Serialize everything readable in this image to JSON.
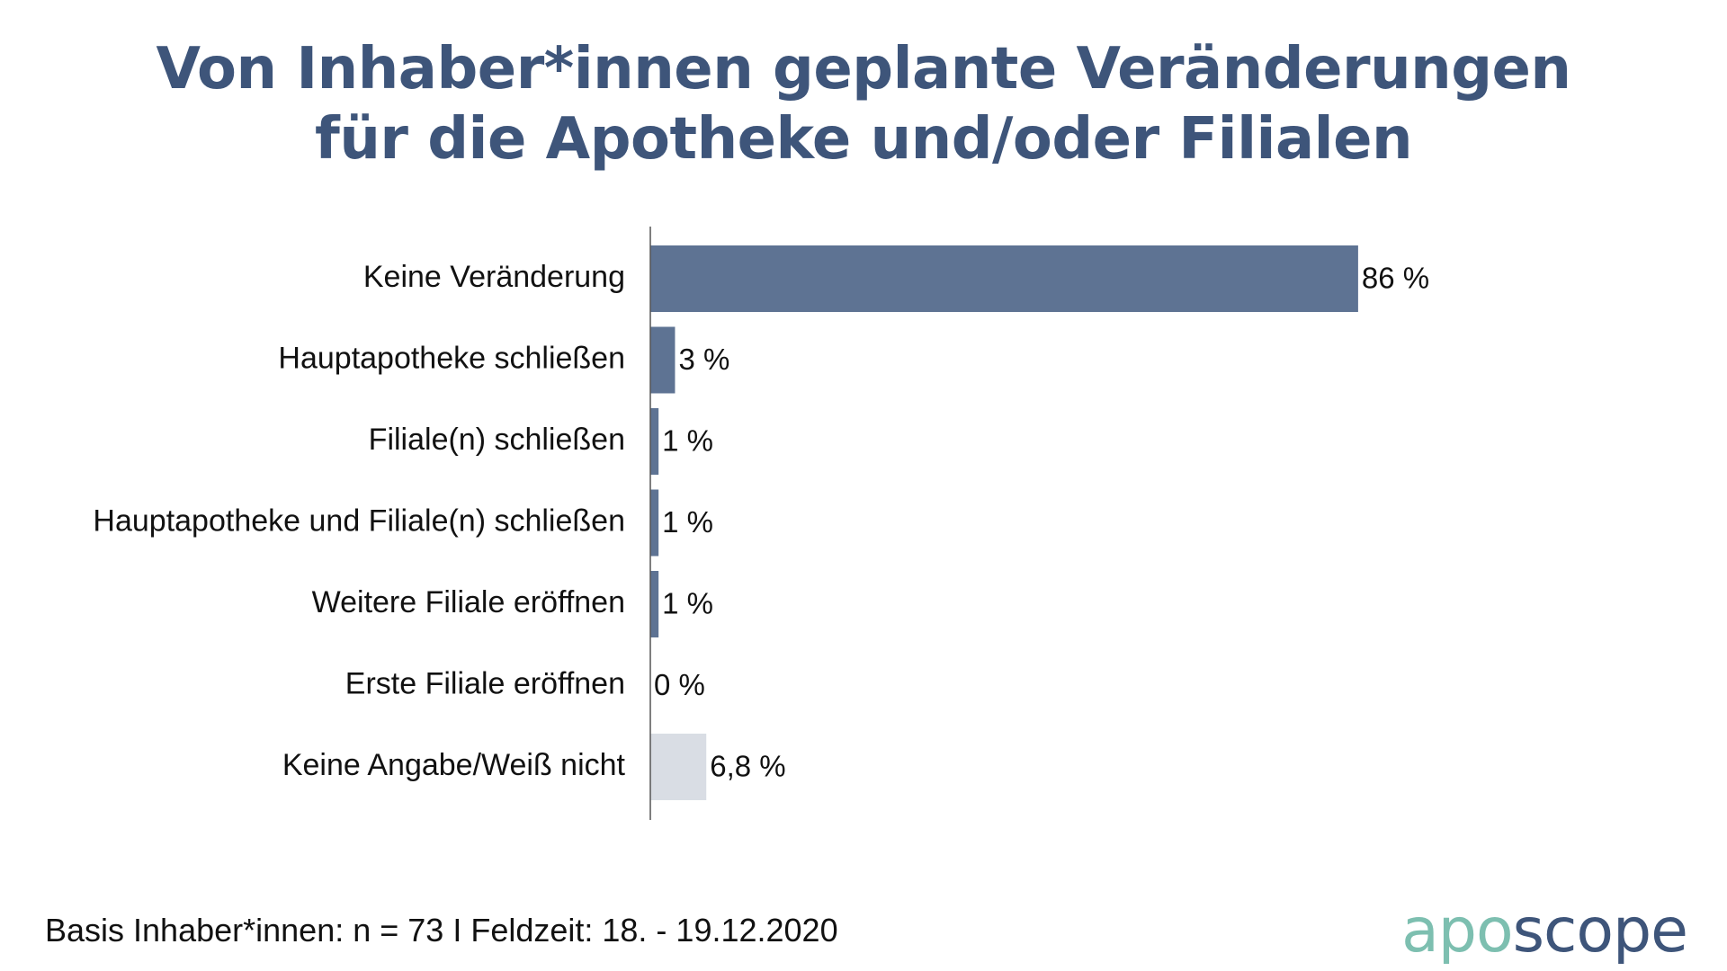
{
  "title": {
    "line1": "Von Inhaber*innen geplante Veränderungen",
    "line2": "für die Apotheke und/oder Filialen"
  },
  "chart_data": {
    "type": "bar",
    "orientation": "horizontal",
    "categories": [
      "Keine Veränderung",
      "Hauptapotheke schließen",
      "Filiale(n) schließen",
      "Hauptapotheke und Filiale(n) schließen",
      "Weitere Filiale eröffnen",
      "Erste Filiale eröffnen",
      "Keine Angabe/Weiß nicht"
    ],
    "values": [
      86,
      3,
      1,
      1,
      1,
      0,
      6.8
    ],
    "value_labels": [
      "86 %",
      "3 %",
      "1 %",
      "1 %",
      "1 %",
      "0 %",
      "6,8 %"
    ],
    "bar_colors": [
      "#5e7393",
      "#5e7393",
      "#5e7393",
      "#5e7393",
      "#5e7393",
      "#5e7393",
      "#d9dde4"
    ],
    "xlim": [
      0,
      100
    ],
    "grid": false,
    "legend": "none"
  },
  "footer": {
    "basis": "Basis Inhaber*innen: n = 73 I Feldzeit: 18. - 19.12.2020"
  },
  "logo": {
    "part_a": "apo",
    "part_b": "scope"
  },
  "colors": {
    "title": "#3e557a",
    "bar": "#5e7393",
    "bar_muted": "#d9dde4",
    "axis": "#555555",
    "logo_accent": "#7dbfb0",
    "logo_main": "#3e557a"
  }
}
